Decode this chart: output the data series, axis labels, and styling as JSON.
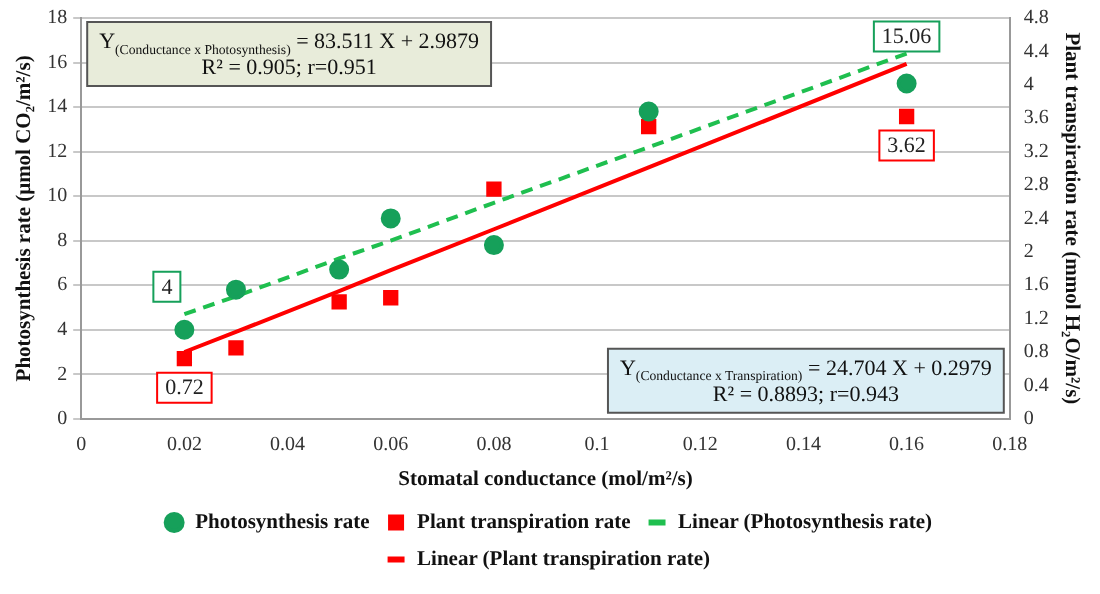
{
  "chart_data": {
    "type": "scatter",
    "xlabel": "Stomatal conductance (mol/m²/s)",
    "ylabel": "Photosynthesis rate (μmol CO₂/m²/s)",
    "y2label": "Plant transpiration rate (mmol H₂O/m²/s)",
    "x": [
      0.02,
      0.03,
      0.05,
      0.06,
      0.08,
      0.11,
      0.16
    ],
    "series": [
      {
        "name": "Photosynthesis rate",
        "color": "#16a05a",
        "marker": "circle",
        "values": [
          4,
          5.8,
          6.7,
          9,
          7.8,
          13.8,
          15.06
        ],
        "value_labels": [
          "4",
          null,
          null,
          null,
          null,
          null,
          "15.06"
        ]
      },
      {
        "name": "Plant transpiration rate",
        "axis": "y2",
        "color": "#ff0000",
        "marker": "square",
        "values": [
          0.72,
          0.85,
          1.4,
          1.45,
          2.75,
          3.5,
          3.62
        ],
        "value_labels": [
          "0.72",
          null,
          null,
          null,
          null,
          null,
          "3.62"
        ]
      },
      {
        "name": "Linear (Photosynthesis rate)",
        "type": "line",
        "color": "#1fbf4f",
        "line_style": "dashed",
        "values": [
          4.7,
          5.5,
          7.2,
          8,
          9.7,
          12.2,
          16.4
        ]
      },
      {
        "name": "Linear (Plant transpiration rate)",
        "type": "line",
        "axis": "y2",
        "color": "#ff0000",
        "line_style": "solid",
        "values": [
          0.8,
          1.04,
          1.53,
          1.78,
          2.27,
          3.01,
          4.25
        ]
      }
    ],
    "xlim": [
      0,
      0.18
    ],
    "xticks": [
      0,
      0.02,
      0.04,
      0.06,
      0.08,
      0.1,
      0.12,
      0.14,
      0.16,
      0.18
    ],
    "ylim": [
      0,
      18
    ],
    "yticks": [
      0,
      2,
      4,
      6,
      8,
      10,
      12,
      14,
      16,
      18
    ],
    "y2lim": [
      0,
      4.8
    ],
    "y2ticks": [
      0,
      0.4,
      0.8,
      1.2,
      1.6,
      2,
      2.4,
      2.8,
      3.2,
      3.6,
      4,
      4.4,
      4.8
    ],
    "grid": "y",
    "legend": "bottom",
    "annotations": [
      "Y$_{(Conductance x Photosynthesis)}$ = 83.511 X + 2.9879\nR² = 0.905; r=0.951",
      "Y$_{(Conductance x Transpiration)}$ = 24.704 X + 0.2979\nR² = 0.8893; r=0.943"
    ]
  }
}
